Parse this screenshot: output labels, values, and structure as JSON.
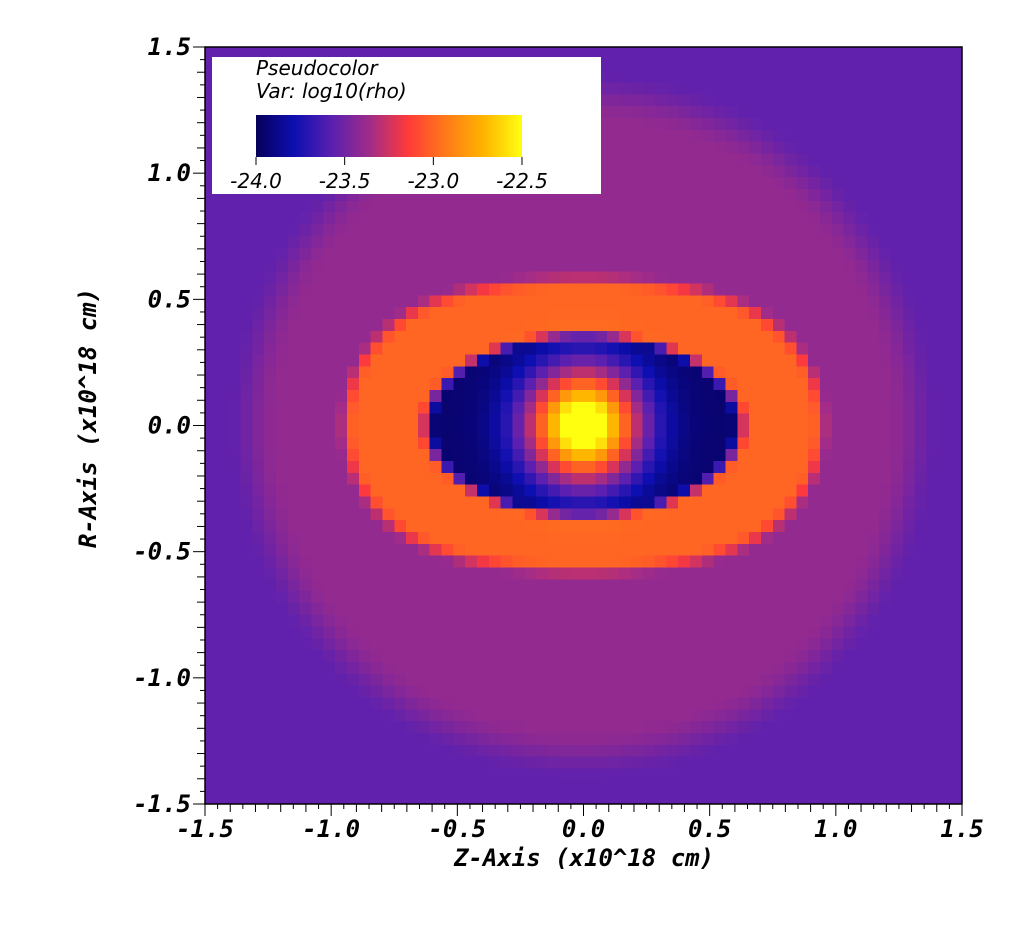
{
  "chart_data": {
    "type": "heatmap",
    "title": "Pseudocolor",
    "variable_label": "Var: log10(rho)",
    "xlabel": "Z-Axis (x10^18 cm)",
    "ylabel": "R-Axis (x10^18 cm)",
    "xlim": [
      -1.5,
      1.5
    ],
    "ylim": [
      -1.5,
      1.5
    ],
    "x_ticks": [
      -1.5,
      -1.0,
      -0.5,
      0.0,
      0.5,
      1.0,
      1.5
    ],
    "y_ticks": [
      -1.5,
      -1.0,
      -0.5,
      0.0,
      0.5,
      1.0,
      1.5
    ],
    "x_tick_labels": [
      "-1.5",
      "-1.0",
      "-0.5",
      "0.0",
      "0.5",
      "1.0",
      "1.5"
    ],
    "y_tick_labels": [
      "-1.5",
      "-1.0",
      "-0.5",
      "0.0",
      "0.5",
      "1.0",
      "1.5"
    ],
    "colorbar": {
      "min": -24.0,
      "max": -22.5,
      "ticks": [
        "-24.0",
        "-23.5",
        "-23.0",
        "-22.5"
      ],
      "colors": [
        "#07005a",
        "#0d0fb0",
        "#5a20b0",
        "#a02c88",
        "#ff3a3a",
        "#ff7a18",
        "#ffb400",
        "#ffff10"
      ]
    },
    "features": {
      "background_level": -23.55,
      "halo_level": -23.4,
      "ring_level": -23.0,
      "cavity_level": -24.0,
      "core_peak_level": -22.5,
      "core_radius": 0.22,
      "cavity_z_halfwidth": 0.66,
      "cavity_r_halfwidth": 0.38,
      "ring_z_halfwidth": 0.95,
      "ring_r_halfwidth": 0.58,
      "halo_radius": 1.36
    },
    "grid": false,
    "legend_position": "top-left"
  }
}
